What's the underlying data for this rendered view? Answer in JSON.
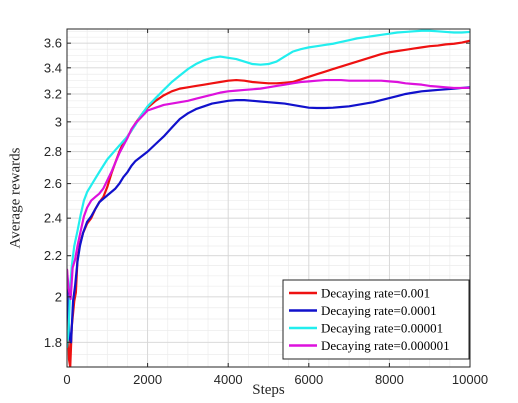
{
  "chart_data": {
    "type": "line",
    "title": "",
    "xlabel": "Steps",
    "ylabel": "Average rewards",
    "xlim": [
      0,
      10000
    ],
    "ylim": [
      1.7,
      3.72
    ],
    "y_scale": "log",
    "grid": true,
    "legend_position": "bottom-right",
    "x_ticks": [
      0,
      2000,
      4000,
      6000,
      8000,
      10000
    ],
    "x_tick_labels": [
      "0",
      "2000",
      "4000",
      "6000",
      "8000",
      "10000"
    ],
    "y_ticks": [
      1.8,
      2,
      2.2,
      2.4,
      2.6,
      2.8,
      3,
      3.2,
      3.4,
      3.6
    ],
    "y_tick_labels": [
      "1.8",
      "2",
      "2.2",
      "2.4",
      "2.6",
      "2.8",
      "3",
      "3.2",
      "3.4",
      "3.6"
    ],
    "series": [
      {
        "name": "Decaying rate=0.001",
        "color": "#ee1111",
        "points": [
          [
            0,
            2.13
          ],
          [
            20,
            1.95
          ],
          [
            50,
            1.73
          ],
          [
            80,
            1.7
          ],
          [
            120,
            1.87
          ],
          [
            180,
            1.98
          ],
          [
            220,
            2.02
          ],
          [
            260,
            2.18
          ],
          [
            320,
            2.26
          ],
          [
            400,
            2.32
          ],
          [
            500,
            2.37
          ],
          [
            600,
            2.4
          ],
          [
            700,
            2.45
          ],
          [
            800,
            2.49
          ],
          [
            900,
            2.52
          ],
          [
            1000,
            2.58
          ],
          [
            1100,
            2.66
          ],
          [
            1200,
            2.73
          ],
          [
            1300,
            2.8
          ],
          [
            1400,
            2.86
          ],
          [
            1500,
            2.9
          ],
          [
            1600,
            2.94
          ],
          [
            1700,
            2.99
          ],
          [
            1800,
            3.03
          ],
          [
            1900,
            3.07
          ],
          [
            2000,
            3.1
          ],
          [
            2200,
            3.15
          ],
          [
            2400,
            3.19
          ],
          [
            2600,
            3.22
          ],
          [
            2800,
            3.24
          ],
          [
            3000,
            3.25
          ],
          [
            3200,
            3.26
          ],
          [
            3400,
            3.27
          ],
          [
            3600,
            3.28
          ],
          [
            3800,
            3.29
          ],
          [
            4000,
            3.3
          ],
          [
            4200,
            3.305
          ],
          [
            4400,
            3.3
          ],
          [
            4600,
            3.29
          ],
          [
            4800,
            3.285
          ],
          [
            5000,
            3.28
          ],
          [
            5200,
            3.28
          ],
          [
            5400,
            3.285
          ],
          [
            5600,
            3.29
          ],
          [
            5800,
            3.31
          ],
          [
            6000,
            3.33
          ],
          [
            6200,
            3.35
          ],
          [
            6400,
            3.37
          ],
          [
            6600,
            3.39
          ],
          [
            6800,
            3.41
          ],
          [
            7000,
            3.43
          ],
          [
            7200,
            3.45
          ],
          [
            7400,
            3.47
          ],
          [
            7600,
            3.49
          ],
          [
            7800,
            3.51
          ],
          [
            8000,
            3.525
          ],
          [
            8200,
            3.535
          ],
          [
            8400,
            3.545
          ],
          [
            8600,
            3.555
          ],
          [
            8800,
            3.565
          ],
          [
            9000,
            3.575
          ],
          [
            9200,
            3.58
          ],
          [
            9400,
            3.59
          ],
          [
            9600,
            3.595
          ],
          [
            9800,
            3.605
          ],
          [
            10000,
            3.62
          ]
        ]
      },
      {
        "name": "Decaying rate=0.0001",
        "color": "#1111cc",
        "points": [
          [
            0,
            2.04
          ],
          [
            30,
            1.95
          ],
          [
            60,
            1.82
          ],
          [
            100,
            1.8
          ],
          [
            150,
            1.98
          ],
          [
            200,
            2.05
          ],
          [
            260,
            2.17
          ],
          [
            320,
            2.25
          ],
          [
            400,
            2.32
          ],
          [
            500,
            2.38
          ],
          [
            600,
            2.41
          ],
          [
            700,
            2.45
          ],
          [
            800,
            2.49
          ],
          [
            900,
            2.51
          ],
          [
            1000,
            2.53
          ],
          [
            1100,
            2.55
          ],
          [
            1200,
            2.57
          ],
          [
            1300,
            2.6
          ],
          [
            1400,
            2.64
          ],
          [
            1500,
            2.67
          ],
          [
            1600,
            2.71
          ],
          [
            1700,
            2.74
          ],
          [
            1800,
            2.76
          ],
          [
            1900,
            2.78
          ],
          [
            2000,
            2.8
          ],
          [
            2200,
            2.85
          ],
          [
            2400,
            2.9
          ],
          [
            2600,
            2.96
          ],
          [
            2800,
            3.02
          ],
          [
            3000,
            3.06
          ],
          [
            3200,
            3.09
          ],
          [
            3400,
            3.11
          ],
          [
            3600,
            3.13
          ],
          [
            3800,
            3.14
          ],
          [
            4000,
            3.15
          ],
          [
            4200,
            3.155
          ],
          [
            4400,
            3.155
          ],
          [
            4600,
            3.15
          ],
          [
            4800,
            3.145
          ],
          [
            5000,
            3.14
          ],
          [
            5200,
            3.135
          ],
          [
            5400,
            3.13
          ],
          [
            5600,
            3.12
          ],
          [
            5800,
            3.11
          ],
          [
            6000,
            3.1
          ],
          [
            6200,
            3.098
          ],
          [
            6400,
            3.098
          ],
          [
            6600,
            3.1
          ],
          [
            6800,
            3.105
          ],
          [
            7000,
            3.11
          ],
          [
            7200,
            3.12
          ],
          [
            7400,
            3.13
          ],
          [
            7600,
            3.14
          ],
          [
            7800,
            3.155
          ],
          [
            8000,
            3.17
          ],
          [
            8200,
            3.185
          ],
          [
            8400,
            3.2
          ],
          [
            8600,
            3.21
          ],
          [
            8800,
            3.22
          ],
          [
            9000,
            3.225
          ],
          [
            9200,
            3.23
          ],
          [
            9400,
            3.235
          ],
          [
            9600,
            3.24
          ],
          [
            9800,
            3.245
          ],
          [
            10000,
            3.25
          ]
        ]
      },
      {
        "name": "Decaying rate=0.00001",
        "color": "#22eeee",
        "points": [
          [
            0,
            1.78
          ],
          [
            40,
            1.85
          ],
          [
            80,
            2.05
          ],
          [
            120,
            2.15
          ],
          [
            180,
            2.25
          ],
          [
            260,
            2.33
          ],
          [
            340,
            2.42
          ],
          [
            420,
            2.5
          ],
          [
            500,
            2.55
          ],
          [
            600,
            2.59
          ],
          [
            700,
            2.63
          ],
          [
            800,
            2.67
          ],
          [
            900,
            2.71
          ],
          [
            1000,
            2.75
          ],
          [
            1100,
            2.78
          ],
          [
            1200,
            2.81
          ],
          [
            1300,
            2.84
          ],
          [
            1400,
            2.87
          ],
          [
            1500,
            2.9
          ],
          [
            1600,
            2.94
          ],
          [
            1700,
            2.98
          ],
          [
            1800,
            3.03
          ],
          [
            1900,
            3.07
          ],
          [
            2000,
            3.11
          ],
          [
            2200,
            3.17
          ],
          [
            2400,
            3.23
          ],
          [
            2600,
            3.29
          ],
          [
            2800,
            3.34
          ],
          [
            3000,
            3.39
          ],
          [
            3200,
            3.43
          ],
          [
            3400,
            3.46
          ],
          [
            3600,
            3.48
          ],
          [
            3800,
            3.49
          ],
          [
            4000,
            3.48
          ],
          [
            4200,
            3.47
          ],
          [
            4400,
            3.45
          ],
          [
            4600,
            3.43
          ],
          [
            4800,
            3.425
          ],
          [
            5000,
            3.43
          ],
          [
            5200,
            3.45
          ],
          [
            5400,
            3.49
          ],
          [
            5600,
            3.53
          ],
          [
            5800,
            3.55
          ],
          [
            6000,
            3.565
          ],
          [
            6200,
            3.575
          ],
          [
            6400,
            3.585
          ],
          [
            6600,
            3.595
          ],
          [
            6800,
            3.61
          ],
          [
            7000,
            3.625
          ],
          [
            7200,
            3.64
          ],
          [
            7400,
            3.65
          ],
          [
            7600,
            3.66
          ],
          [
            7800,
            3.67
          ],
          [
            8000,
            3.68
          ],
          [
            8200,
            3.69
          ],
          [
            8400,
            3.695
          ],
          [
            8600,
            3.7
          ],
          [
            8800,
            3.705
          ],
          [
            9000,
            3.705
          ],
          [
            9200,
            3.7
          ],
          [
            9400,
            3.695
          ],
          [
            9600,
            3.69
          ],
          [
            9800,
            3.69
          ],
          [
            10000,
            3.695
          ]
        ]
      },
      {
        "name": "Decaying rate=0.000001",
        "color": "#dd11dd",
        "points": [
          [
            0,
            2.13
          ],
          [
            40,
            2.04
          ],
          [
            90,
            1.99
          ],
          [
            140,
            2.14
          ],
          [
            200,
            2.18
          ],
          [
            260,
            2.25
          ],
          [
            340,
            2.33
          ],
          [
            420,
            2.41
          ],
          [
            500,
            2.46
          ],
          [
            600,
            2.5
          ],
          [
            700,
            2.52
          ],
          [
            800,
            2.54
          ],
          [
            900,
            2.57
          ],
          [
            1000,
            2.62
          ],
          [
            1100,
            2.67
          ],
          [
            1200,
            2.73
          ],
          [
            1300,
            2.79
          ],
          [
            1400,
            2.84
          ],
          [
            1500,
            2.89
          ],
          [
            1600,
            2.95
          ],
          [
            1700,
            2.99
          ],
          [
            1800,
            3.02
          ],
          [
            1900,
            3.05
          ],
          [
            2000,
            3.08
          ],
          [
            2200,
            3.1
          ],
          [
            2400,
            3.12
          ],
          [
            2600,
            3.13
          ],
          [
            2800,
            3.14
          ],
          [
            3000,
            3.15
          ],
          [
            3200,
            3.165
          ],
          [
            3400,
            3.18
          ],
          [
            3600,
            3.195
          ],
          [
            3800,
            3.21
          ],
          [
            4000,
            3.22
          ],
          [
            4200,
            3.225
          ],
          [
            4400,
            3.23
          ],
          [
            4600,
            3.235
          ],
          [
            4800,
            3.24
          ],
          [
            5000,
            3.25
          ],
          [
            5200,
            3.26
          ],
          [
            5400,
            3.27
          ],
          [
            5600,
            3.28
          ],
          [
            5800,
            3.29
          ],
          [
            6000,
            3.295
          ],
          [
            6200,
            3.3
          ],
          [
            6400,
            3.305
          ],
          [
            6600,
            3.305
          ],
          [
            6800,
            3.305
          ],
          [
            7000,
            3.3
          ],
          [
            7200,
            3.3
          ],
          [
            7400,
            3.3
          ],
          [
            7600,
            3.3
          ],
          [
            7800,
            3.3
          ],
          [
            8000,
            3.295
          ],
          [
            8200,
            3.29
          ],
          [
            8400,
            3.28
          ],
          [
            8600,
            3.275
          ],
          [
            8800,
            3.27
          ],
          [
            9000,
            3.26
          ],
          [
            9200,
            3.255
          ],
          [
            9400,
            3.25
          ],
          [
            9600,
            3.245
          ],
          [
            9800,
            3.245
          ],
          [
            10000,
            3.245
          ]
        ]
      }
    ]
  }
}
